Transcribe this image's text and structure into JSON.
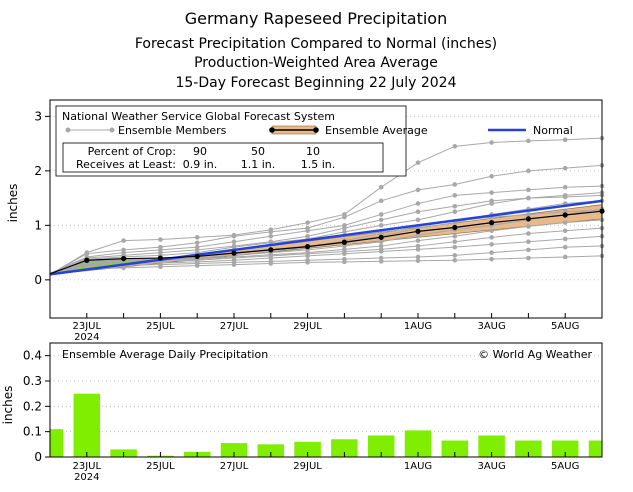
{
  "header": {
    "title": "Germany Rapeseed Precipitation",
    "subtitle1": "Forecast Precipitation Compared to Normal (inches)",
    "subtitle2": "Production-Weighted Area Average",
    "subtitle3": "15-Day Forecast Beginning 22 July 2024"
  },
  "colors": {
    "normal": "#2244dd",
    "ensemble_member": "#a8a8a8",
    "ensemble_average": "#000000",
    "range_band": "#e8b98a",
    "above_normal_fill": "#7be000",
    "bar": "#80ee00",
    "gridline": "#bbbbbb"
  },
  "legend": {
    "source": "National Weather Service Global Forecast System",
    "members_label": "Ensemble Members",
    "average_label": "Ensemble Average",
    "normal_label": "Normal",
    "crop_header": "Percent of Crop:",
    "crop_pcts": [
      "90",
      "50",
      "10"
    ],
    "receive_header": "Receives at Least:",
    "receive_vals": [
      "0.9 in.",
      "1.1 in.",
      "1.5 in."
    ]
  },
  "bottom_panel": {
    "title": "Ensemble Average Daily Precipitation",
    "credit": "© World Ag Weather"
  },
  "chart_data": [
    {
      "type": "line",
      "title": "",
      "ylabel": "inches",
      "ylim": [
        -0.7,
        3.3
      ],
      "yticks": [
        0,
        1,
        2,
        3
      ],
      "xlim": [
        22,
        37
      ],
      "x_ticks": [
        {
          "x": 23,
          "label": "23JUL",
          "label2": "2024"
        },
        {
          "x": 25,
          "label": "25JUL",
          "label2": ""
        },
        {
          "x": 27,
          "label": "27JUL",
          "label2": ""
        },
        {
          "x": 29,
          "label": "29JUL",
          "label2": ""
        },
        {
          "x": 32,
          "label": "1AUG",
          "label2": ""
        },
        {
          "x": 34,
          "label": "3AUG",
          "label2": ""
        },
        {
          "x": 36,
          "label": "5AUG",
          "label2": ""
        }
      ],
      "grid": "horizontal dotted",
      "legend_position": "top-left",
      "normal": {
        "name": "Normal",
        "x": [
          22,
          37
        ],
        "values": [
          0.1,
          1.45
        ]
      },
      "ensemble_average": {
        "name": "Ensemble Average",
        "x": [
          22,
          23,
          24,
          25,
          26,
          27,
          28,
          29,
          30,
          31,
          32,
          33,
          34,
          35,
          36,
          37
        ],
        "values": [
          0.11,
          0.36,
          0.39,
          0.4,
          0.43,
          0.49,
          0.55,
          0.61,
          0.69,
          0.78,
          0.89,
          0.96,
          1.05,
          1.12,
          1.19,
          1.26
        ]
      },
      "ensemble_members": [
        [
          0.1,
          0.5,
          0.72,
          0.74,
          0.78,
          0.82,
          0.92,
          1.05,
          1.2,
          1.7,
          2.15,
          2.45,
          2.52,
          2.55,
          2.57,
          2.6
        ],
        [
          0.1,
          0.48,
          0.55,
          0.6,
          0.68,
          0.8,
          0.88,
          0.95,
          1.15,
          1.45,
          1.65,
          1.75,
          1.9,
          2.0,
          2.05,
          2.1
        ],
        [
          0.12,
          0.42,
          0.5,
          0.55,
          0.6,
          0.7,
          0.8,
          0.9,
          1.0,
          1.2,
          1.4,
          1.55,
          1.6,
          1.65,
          1.7,
          1.72
        ],
        [
          0.09,
          0.38,
          0.42,
          0.45,
          0.5,
          0.6,
          0.68,
          0.75,
          0.88,
          1.0,
          1.1,
          1.25,
          1.4,
          1.5,
          1.55,
          1.6
        ],
        [
          0.1,
          0.36,
          0.38,
          0.4,
          0.44,
          0.5,
          0.56,
          0.62,
          0.7,
          0.8,
          0.95,
          1.05,
          1.2,
          1.3,
          1.4,
          1.45
        ],
        [
          0.11,
          0.35,
          0.37,
          0.38,
          0.4,
          0.45,
          0.5,
          0.55,
          0.62,
          0.7,
          0.82,
          0.92,
          1.0,
          1.1,
          1.2,
          1.3
        ],
        [
          0.1,
          0.33,
          0.36,
          0.37,
          0.38,
          0.42,
          0.46,
          0.5,
          0.56,
          0.62,
          0.72,
          0.8,
          0.9,
          0.98,
          1.05,
          1.1
        ],
        [
          0.1,
          0.3,
          0.33,
          0.34,
          0.36,
          0.4,
          0.44,
          0.48,
          0.52,
          0.56,
          0.62,
          0.7,
          0.78,
          0.85,
          0.9,
          0.95
        ],
        [
          0.09,
          0.28,
          0.3,
          0.31,
          0.33,
          0.36,
          0.4,
          0.44,
          0.48,
          0.52,
          0.56,
          0.6,
          0.65,
          0.7,
          0.75,
          0.8
        ],
        [
          0.1,
          0.25,
          0.27,
          0.28,
          0.3,
          0.32,
          0.34,
          0.36,
          0.38,
          0.4,
          0.42,
          0.45,
          0.5,
          0.55,
          0.6,
          0.62
        ],
        [
          0.1,
          0.2,
          0.22,
          0.24,
          0.26,
          0.28,
          0.3,
          0.32,
          0.33,
          0.34,
          0.35,
          0.36,
          0.38,
          0.4,
          0.42,
          0.44
        ],
        [
          0.12,
          0.4,
          0.45,
          0.5,
          0.55,
          0.62,
          0.7,
          0.8,
          0.95,
          1.1,
          1.25,
          1.35,
          1.45,
          1.5,
          1.52,
          1.55
        ],
        [
          0.1,
          0.32,
          0.34,
          0.36,
          0.4,
          0.45,
          0.52,
          0.6,
          0.72,
          0.85,
          0.98,
          1.08,
          1.15,
          1.2,
          1.25,
          1.28
        ]
      ],
      "range_band": {
        "x": [
          22,
          37
        ],
        "low": [
          0.1,
          1.12
        ],
        "high": [
          0.12,
          1.38
        ]
      }
    },
    {
      "type": "bar",
      "title": "Ensemble Average Daily Precipitation",
      "ylabel": "inches",
      "ylim": [
        0,
        0.45
      ],
      "yticks": [
        0,
        0.1,
        0.2,
        0.3,
        0.4
      ],
      "ytick_labels": [
        "0",
        "0.1",
        "0.2",
        "0.3",
        "0.4"
      ],
      "xlim": [
        22,
        37
      ],
      "x_ticks": [
        {
          "x": 23,
          "label": "23JUL",
          "label2": "2024"
        },
        {
          "x": 25,
          "label": "25JUL",
          "label2": ""
        },
        {
          "x": 27,
          "label": "27JUL",
          "label2": ""
        },
        {
          "x": 29,
          "label": "29JUL",
          "label2": ""
        },
        {
          "x": 32,
          "label": "1AUG",
          "label2": ""
        },
        {
          "x": 34,
          "label": "3AUG",
          "label2": ""
        },
        {
          "x": 36,
          "label": "5AUG",
          "label2": ""
        }
      ],
      "grid": "horizontal dotted",
      "x": [
        22,
        23,
        24,
        25,
        26,
        27,
        28,
        29,
        30,
        31,
        32,
        33,
        34,
        35,
        36,
        37
      ],
      "values": [
        0.11,
        0.25,
        0.03,
        0.005,
        0.02,
        0.055,
        0.05,
        0.06,
        0.07,
        0.085,
        0.105,
        0.065,
        0.085,
        0.065,
        0.065,
        0.065
      ]
    }
  ]
}
